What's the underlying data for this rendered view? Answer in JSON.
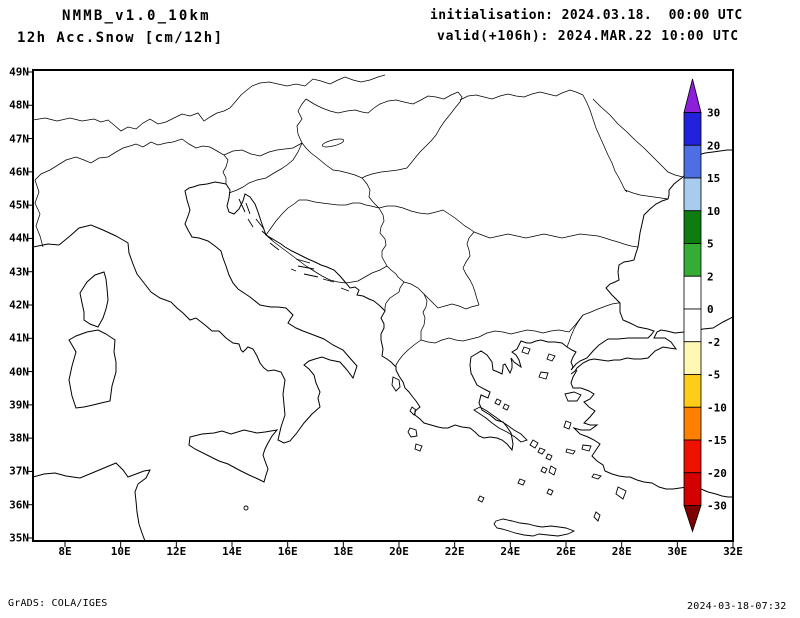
{
  "header": {
    "model": "NMMB_v1.0_10km",
    "field": "12h Acc.Snow [cm/12h]",
    "init": "initialisation: 2024.03.18.  00:00 UTC",
    "valid": "valid(+106h): 2024.MAR.22 10:00 UTC"
  },
  "map": {
    "lat_labels": [
      "49N",
      "48N",
      "47N",
      "46N",
      "45N",
      "44N",
      "43N",
      "42N",
      "41N",
      "40N",
      "39N",
      "38N",
      "37N",
      "36N",
      "35N"
    ],
    "lon_labels": [
      "8E",
      "10E",
      "12E",
      "14E",
      "16E",
      "18E",
      "20E",
      "22E",
      "24E",
      "26E",
      "28E",
      "30E",
      "32E"
    ]
  },
  "colorbar": {
    "labels": [
      "30",
      "20",
      "15",
      "10",
      "5",
      "2",
      "0",
      "-2",
      "-5",
      "-10",
      "-15",
      "-20",
      "-30"
    ],
    "colors": [
      "#8C1FD9",
      "#2222DD",
      "#4D6FE3",
      "#A8CCEE",
      "#0E7C0E",
      "#35AD35",
      "#FFFFFF",
      "#FFFFFF",
      "#FFF7B3",
      "#FFCC1A",
      "#FF7F00",
      "#EE1100",
      "#D40000",
      "#7E0000"
    ]
  },
  "footer": {
    "left": "GrADS: COLA/IGES",
    "right": "2024-03-18-07:32"
  }
}
